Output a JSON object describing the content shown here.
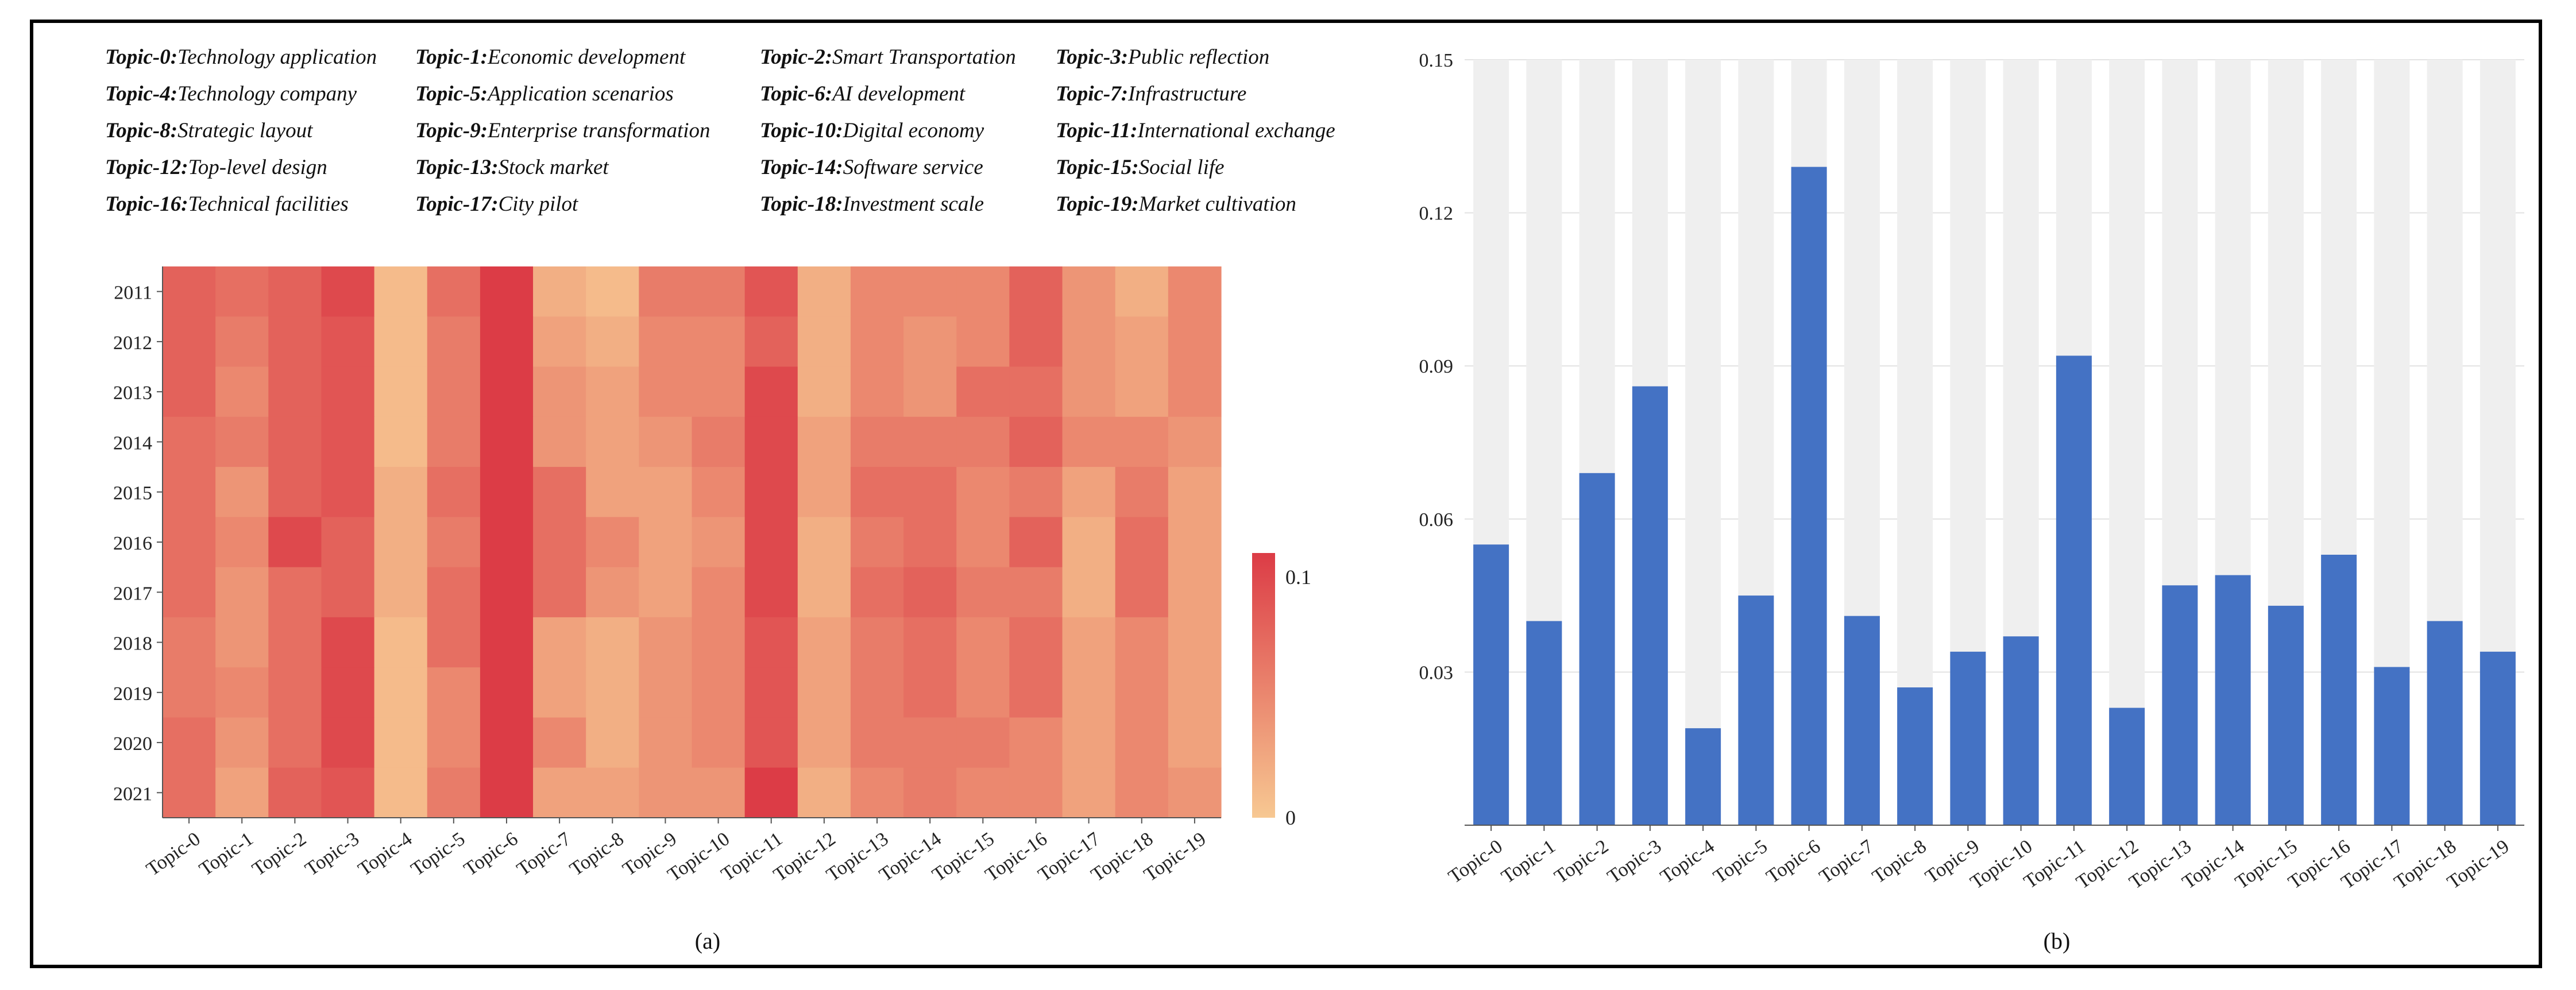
{
  "legend": [
    {
      "key": "Topic-0:",
      "label": "Technology application"
    },
    {
      "key": "Topic-1:",
      "label": "Economic development"
    },
    {
      "key": "Topic-2:",
      "label": "Smart Transportation"
    },
    {
      "key": "Topic-3:",
      "label": "Public reflection"
    },
    {
      "key": "Topic-4:",
      "label": "Technology company"
    },
    {
      "key": "Topic-5:",
      "label": "Application scenarios"
    },
    {
      "key": "Topic-6:",
      "label": "AI development"
    },
    {
      "key": "Topic-7:",
      "label": "Infrastructure"
    },
    {
      "key": "Topic-8:",
      "label": "Strategic layout"
    },
    {
      "key": "Topic-9:",
      "label": "Enterprise  transformation"
    },
    {
      "key": "Topic-10:",
      "label": "Digital economy"
    },
    {
      "key": "Topic-11:",
      "label": "International exchange"
    },
    {
      "key": "Topic-12:",
      "label": "Top-level design"
    },
    {
      "key": "Topic-13:",
      "label": "Stock market"
    },
    {
      "key": "Topic-14:",
      "label": "Software service"
    },
    {
      "key": "Topic-15:",
      "label": "Social life"
    },
    {
      "key": "Topic-16:",
      "label": "Technical facilities"
    },
    {
      "key": "Topic-17:",
      "label": "City pilot"
    },
    {
      "key": "Topic-18:",
      "label": "Investment scale"
    },
    {
      "key": "Topic-19:",
      "label": "Market cultivation"
    }
  ],
  "captions": {
    "a": "(a)",
    "b": "(b)"
  },
  "chart_data": [
    {
      "type": "heatmap",
      "title": "",
      "x": [
        "Topic-0",
        "Topic-1",
        "Topic-2",
        "Topic-3",
        "Topic-4",
        "Topic-5",
        "Topic-6",
        "Topic-7",
        "Topic-8",
        "Topic-9",
        "Topic-10",
        "Topic-11",
        "Topic-12",
        "Topic-13",
        "Topic-14",
        "Topic-15",
        "Topic-16",
        "Topic-17",
        "Topic-18",
        "Topic-19"
      ],
      "y": [
        "2011",
        "2012",
        "2013",
        "2014",
        "2015",
        "2016",
        "2017",
        "2018",
        "2019",
        "2020",
        "2021"
      ],
      "values": [
        [
          0.08,
          0.07,
          0.08,
          0.1,
          0.01,
          0.07,
          0.11,
          0.02,
          0.01,
          0.06,
          0.06,
          0.09,
          0.02,
          0.05,
          0.05,
          0.05,
          0.08,
          0.04,
          0.02,
          0.05
        ],
        [
          0.08,
          0.06,
          0.08,
          0.09,
          0.01,
          0.06,
          0.11,
          0.03,
          0.02,
          0.05,
          0.05,
          0.08,
          0.02,
          0.05,
          0.04,
          0.05,
          0.08,
          0.04,
          0.03,
          0.05
        ],
        [
          0.08,
          0.05,
          0.08,
          0.09,
          0.01,
          0.06,
          0.11,
          0.04,
          0.03,
          0.05,
          0.05,
          0.1,
          0.02,
          0.05,
          0.04,
          0.07,
          0.07,
          0.04,
          0.03,
          0.05
        ],
        [
          0.07,
          0.06,
          0.08,
          0.09,
          0.01,
          0.06,
          0.11,
          0.04,
          0.03,
          0.04,
          0.06,
          0.1,
          0.03,
          0.06,
          0.06,
          0.06,
          0.08,
          0.05,
          0.05,
          0.04
        ],
        [
          0.07,
          0.04,
          0.08,
          0.09,
          0.02,
          0.07,
          0.11,
          0.07,
          0.03,
          0.03,
          0.05,
          0.1,
          0.03,
          0.07,
          0.07,
          0.05,
          0.06,
          0.03,
          0.06,
          0.03
        ],
        [
          0.07,
          0.05,
          0.1,
          0.08,
          0.02,
          0.06,
          0.11,
          0.07,
          0.05,
          0.03,
          0.04,
          0.1,
          0.02,
          0.06,
          0.07,
          0.05,
          0.08,
          0.02,
          0.07,
          0.03
        ],
        [
          0.07,
          0.04,
          0.07,
          0.08,
          0.02,
          0.07,
          0.11,
          0.07,
          0.04,
          0.03,
          0.05,
          0.1,
          0.02,
          0.07,
          0.08,
          0.06,
          0.06,
          0.02,
          0.07,
          0.03
        ],
        [
          0.06,
          0.04,
          0.07,
          0.1,
          0.01,
          0.07,
          0.11,
          0.03,
          0.02,
          0.04,
          0.05,
          0.09,
          0.03,
          0.06,
          0.07,
          0.05,
          0.07,
          0.03,
          0.05,
          0.03
        ],
        [
          0.06,
          0.05,
          0.07,
          0.1,
          0.01,
          0.05,
          0.11,
          0.03,
          0.02,
          0.04,
          0.05,
          0.09,
          0.03,
          0.06,
          0.07,
          0.05,
          0.07,
          0.03,
          0.05,
          0.03
        ],
        [
          0.07,
          0.04,
          0.07,
          0.1,
          0.01,
          0.05,
          0.11,
          0.05,
          0.02,
          0.04,
          0.05,
          0.09,
          0.03,
          0.06,
          0.06,
          0.06,
          0.05,
          0.03,
          0.05,
          0.03
        ],
        [
          0.07,
          0.03,
          0.08,
          0.09,
          0.01,
          0.06,
          0.11,
          0.03,
          0.03,
          0.04,
          0.04,
          0.11,
          0.02,
          0.05,
          0.06,
          0.05,
          0.05,
          0.03,
          0.05,
          0.04
        ]
      ],
      "colorbar": {
        "min": 0,
        "max": 0.11,
        "tick_labels": [
          "0.1",
          "0"
        ],
        "tick_values": [
          0.1,
          0
        ]
      },
      "caption": "(a)"
    },
    {
      "type": "bar",
      "title": "",
      "categories": [
        "Topic-0",
        "Topic-1",
        "Topic-2",
        "Topic-3",
        "Topic-4",
        "Topic-5",
        "Topic-6",
        "Topic-7",
        "Topic-8",
        "Topic-9",
        "Topic-10",
        "Topic-11",
        "Topic-12",
        "Topic-13",
        "Topic-14",
        "Topic-15",
        "Topic-16",
        "Topic-17",
        "Topic-18",
        "Topic-19"
      ],
      "values": [
        0.055,
        0.04,
        0.069,
        0.086,
        0.019,
        0.045,
        0.129,
        0.041,
        0.027,
        0.034,
        0.037,
        0.092,
        0.023,
        0.047,
        0.049,
        0.043,
        0.053,
        0.031,
        0.04,
        0.034
      ],
      "ylim": [
        0,
        0.15
      ],
      "yticks": [
        "0.03",
        "0.06",
        "0.09",
        "0.12",
        "0.15"
      ],
      "ytick_values": [
        0.03,
        0.06,
        0.09,
        0.12,
        0.15
      ],
      "bar_color": "#4472c4",
      "background_band_color": "#efefef",
      "caption": "(b)"
    }
  ]
}
